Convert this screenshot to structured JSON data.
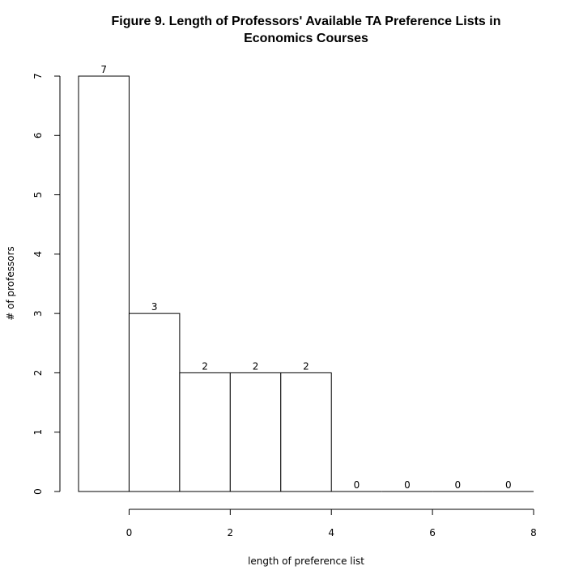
{
  "chart_data": {
    "type": "bar",
    "title": "Figure 9. Length of Professors' Available TA Preference Lists in Economics Courses",
    "title_lines": [
      "Figure 9. Length of Professors' Available TA Preference Lists in",
      "Economics Courses"
    ],
    "xlabel": "length of preference list",
    "ylabel": "# of professors",
    "bins": [
      {
        "x0": -1,
        "x1": 0,
        "value": 7
      },
      {
        "x0": 0,
        "x1": 1,
        "value": 3
      },
      {
        "x0": 1,
        "x1": 2,
        "value": 2
      },
      {
        "x0": 2,
        "x1": 3,
        "value": 2
      },
      {
        "x0": 3,
        "x1": 4,
        "value": 2
      },
      {
        "x0": 4,
        "x1": 5,
        "value": 0
      },
      {
        "x0": 5,
        "x1": 6,
        "value": 0
      },
      {
        "x0": 6,
        "x1": 7,
        "value": 0
      },
      {
        "x0": 7,
        "x1": 8,
        "value": 0
      }
    ],
    "values": [
      7,
      3,
      2,
      2,
      2,
      0,
      0,
      0,
      0
    ],
    "value_labels": [
      "7",
      "3",
      "2",
      "2",
      "2",
      "0",
      "0",
      "0",
      "0"
    ],
    "xticks": [
      0,
      2,
      4,
      6,
      8
    ],
    "xtick_labels": [
      "0",
      "2",
      "4",
      "6",
      "8"
    ],
    "xlim": [
      -1,
      8
    ],
    "yticks": [
      0,
      1,
      2,
      3,
      4,
      5,
      6,
      7
    ],
    "ytick_labels": [
      "0",
      "1",
      "2",
      "3",
      "4",
      "5",
      "6",
      "7"
    ],
    "ylim": [
      0,
      7
    ],
    "grid": false,
    "legend": "none",
    "colors": {
      "bar_fill": "#ffffff",
      "bar_stroke": "#000000",
      "background": "#ffffff"
    }
  }
}
